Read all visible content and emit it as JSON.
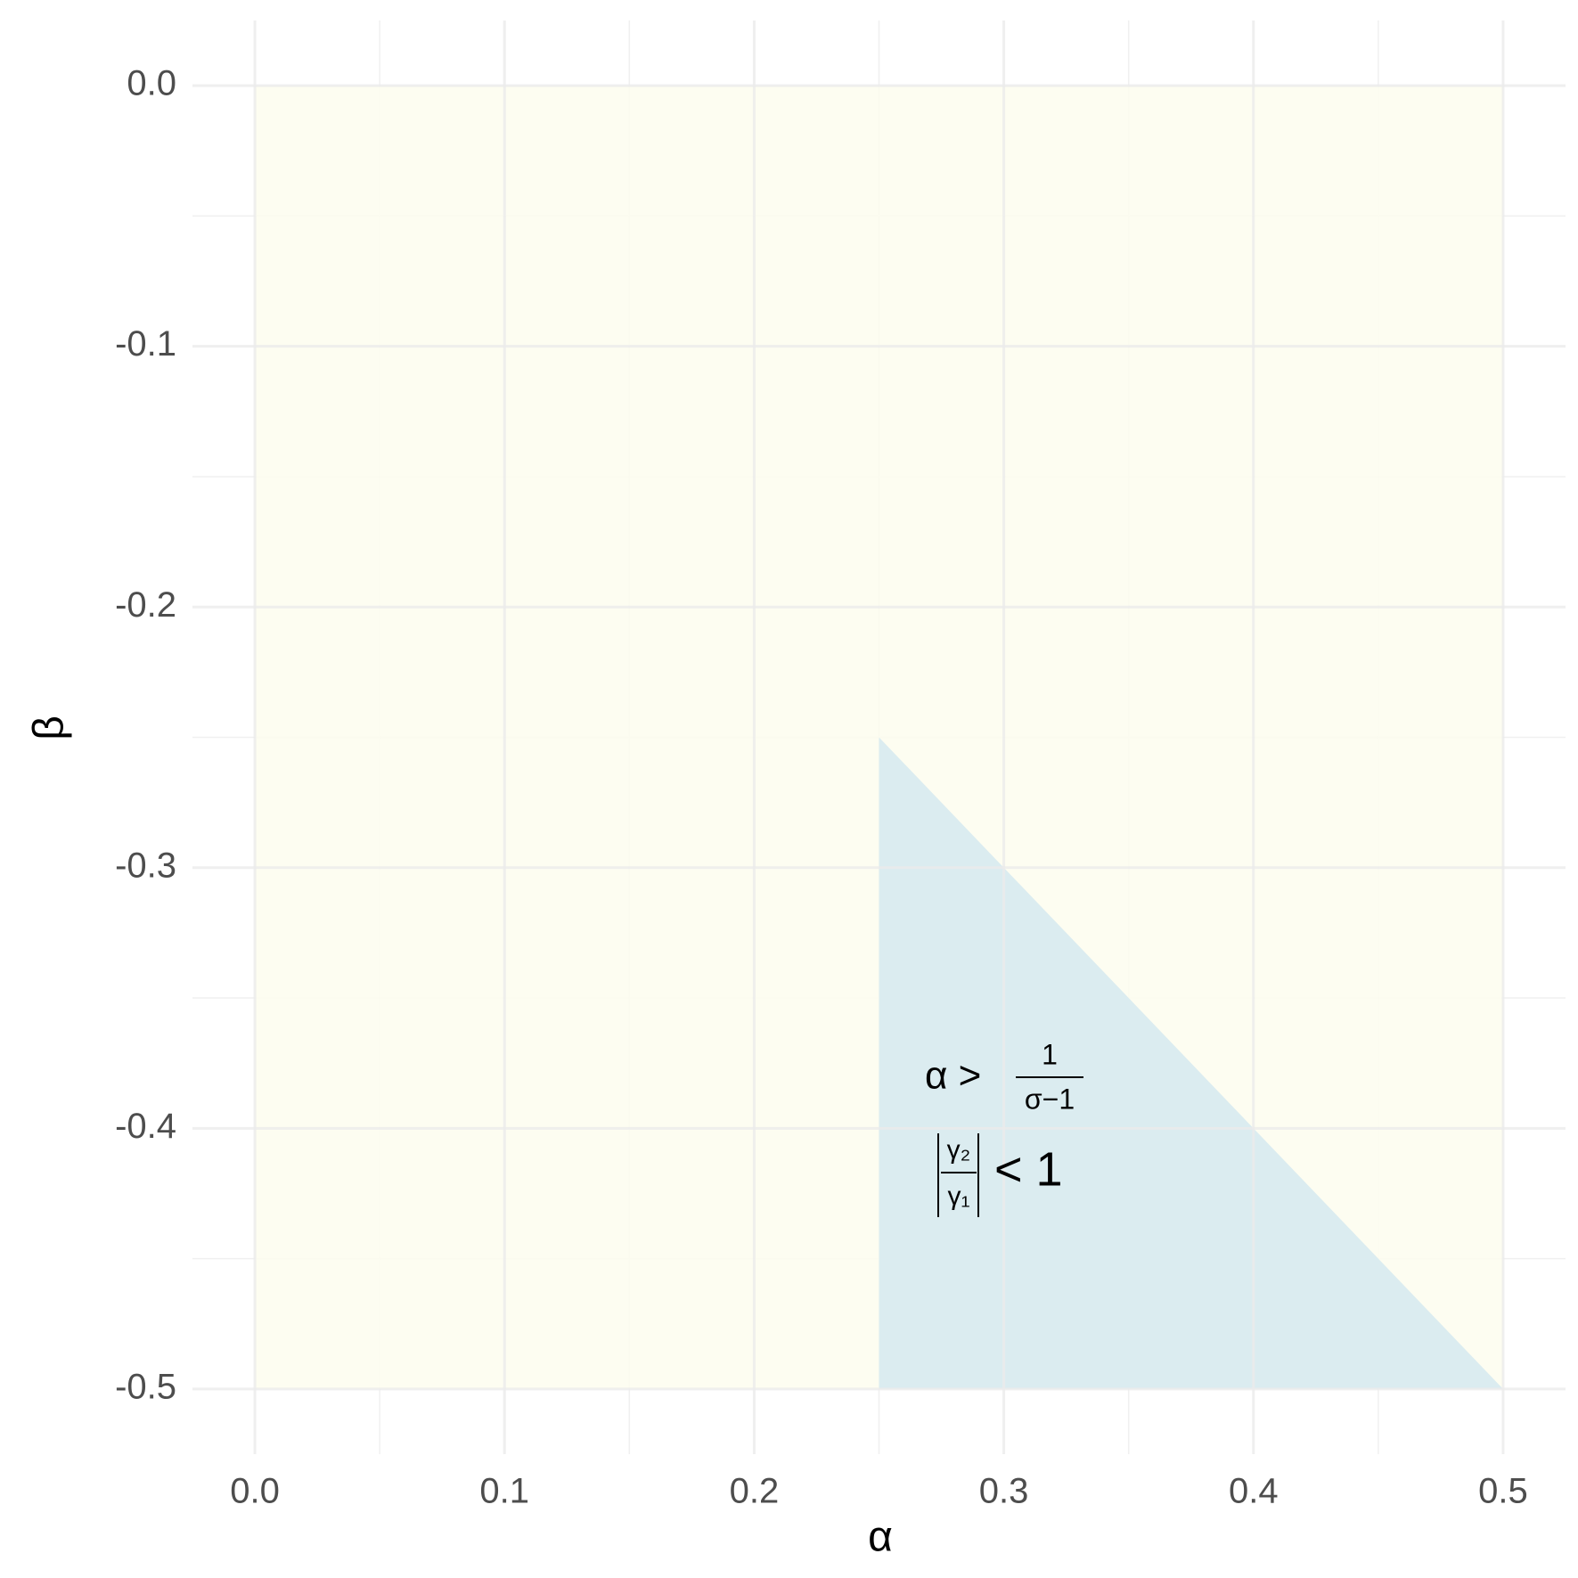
{
  "chart_data": {
    "type": "region",
    "x_label": "α",
    "y_label": "β",
    "xlim": [
      -0.025,
      0.525
    ],
    "ylim": [
      -0.525,
      0.025
    ],
    "xticks": [
      {
        "value": 0,
        "label": "0.0"
      },
      0.1,
      0.2,
      0.3,
      0.4,
      0.5
    ],
    "yticks": [
      {
        "value": 0,
        "label": "0.0"
      },
      -0.1,
      -0.2,
      -0.3,
      -0.4,
      -0.5
    ],
    "x_minor_ticks": [
      0.05,
      0.15,
      0.25,
      0.35,
      0.45
    ],
    "y_minor_ticks": [
      -0.05,
      -0.15,
      -0.25,
      -0.35,
      -0.45
    ],
    "grid": true,
    "series": [
      {
        "color": "#fdfdee",
        "x": [
          0,
          0.5,
          0.5,
          0
        ],
        "y": [
          0,
          0,
          -0.5,
          -0.5
        ]
      },
      {
        "color": "#d5e9f0",
        "x": [
          0.25,
          0.5,
          0.25
        ],
        "y": [
          -0.25,
          -0.5,
          -0.5
        ]
      }
    ],
    "annotation": {
      "line1": {
        "lhs": "α >",
        "numerator": "1",
        "denominator": "σ−1"
      },
      "line2": {
        "numerator": "γ₂",
        "denominator": "γ₁",
        "rhs": "< 1"
      }
    }
  }
}
